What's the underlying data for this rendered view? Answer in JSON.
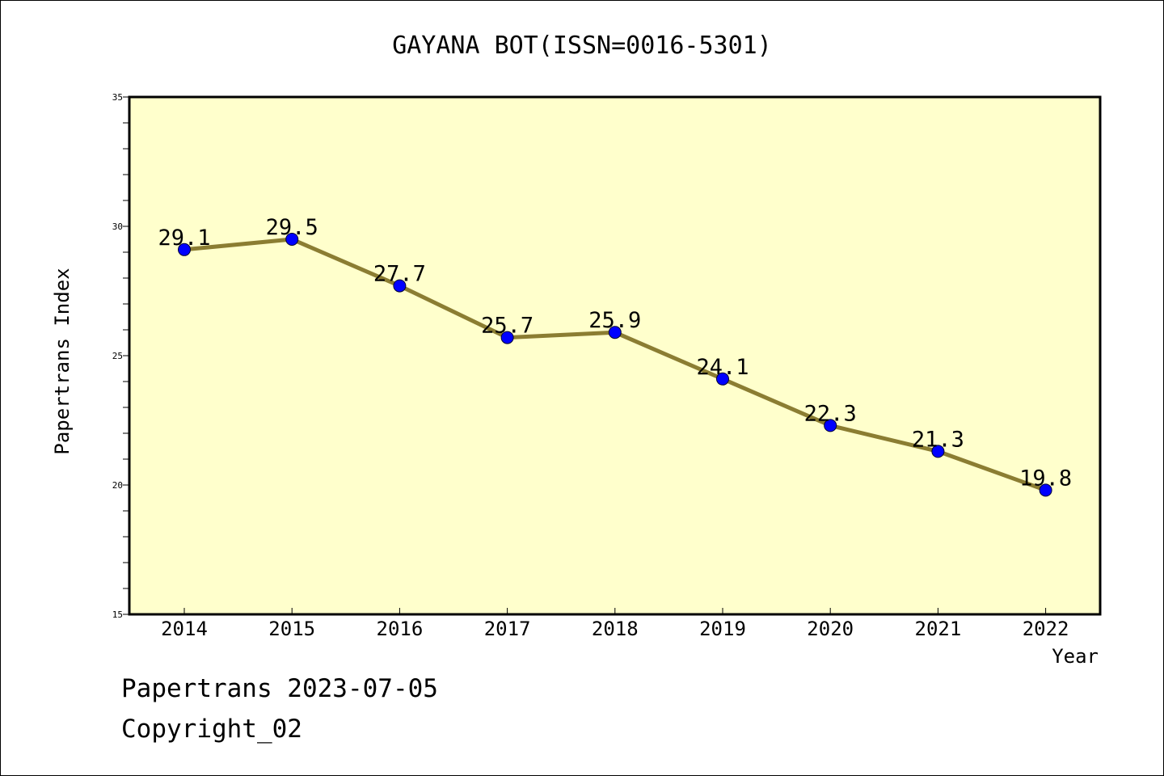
{
  "chart_data": {
    "type": "line",
    "title": "GAYANA BOT(ISSN=0016-5301)",
    "xlabel": "Year",
    "ylabel": "Papertrans Index",
    "x": [
      "2014",
      "2015",
      "2016",
      "2017",
      "2018",
      "2019",
      "2020",
      "2021",
      "2022"
    ],
    "series": [
      {
        "values": [
          29.1,
          29.5,
          27.7,
          25.7,
          25.9,
          24.1,
          22.3,
          21.3,
          19.8
        ],
        "labels": [
          "29.1",
          "29.5",
          "27.7",
          "25.7",
          "25.9",
          "24.1",
          "22.3",
          "21.3",
          "19.8"
        ]
      }
    ],
    "ylim": [
      15,
      35
    ],
    "yticks": [
      "15",
      "20",
      "25",
      "30",
      "35"
    ],
    "grid": false,
    "colors": {
      "plot_bg": "#ffffcc",
      "line": "#8b7d32",
      "marker": "#0000ff"
    }
  },
  "footer": {
    "line1": "Papertrans 2023-07-05",
    "line2": "Copyright_02"
  }
}
